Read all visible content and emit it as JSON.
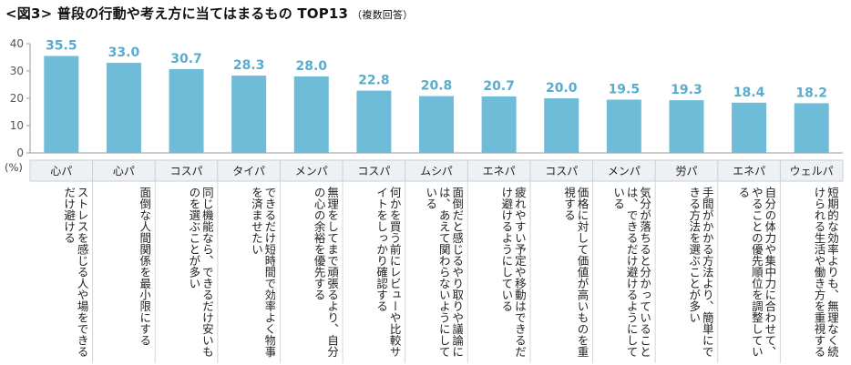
{
  "title": "<図3> 普段の行動や考え方に当てはまるもの TOP13",
  "subtitle": "（複数回答）",
  "chart_data": {
    "type": "bar",
    "ylabel": "(%)",
    "ylim": [
      0,
      40
    ],
    "yticks": [
      0,
      10,
      20,
      30,
      40
    ],
    "grid": false,
    "bar_color": "#6fbcd8",
    "label_color": "#5aaccd",
    "categories": [
      "心パ",
      "心パ",
      "コスパ",
      "タイパ",
      "メンパ",
      "コスパ",
      "ムシパ",
      "エネパ",
      "コスパ",
      "メンパ",
      "労パ",
      "エネパ",
      "ウェルパ"
    ],
    "descriptions": [
      "ストレスを感じる人や場をできるだけ避ける",
      "面倒な人間関係を最小限にする",
      "同じ機能なら、できるだけ安いものを選ぶことが多い",
      "できるだけ短時間で効率よく物事を済ませたい",
      "無理をしてまで頑張るより、自分の心の余裕を優先する",
      "何かを買う前にレビューや比較サイトをしっかり確認する",
      "面倒だと感じるやり取りや議論には、あえて関わらないようにしている",
      "疲れやすい予定や移動はできるだけ避けるようにしている",
      "価格に対して価値が高いものを重視する",
      "気分が落ちると分かっていることは、できるだけ避けるようにしている",
      "手間がかかる方法より、簡単にできる方法を選ぶことが多い",
      "自分の体力や集中力に合わせて、やることの優先順位を調整している",
      "短期的な効率よりも、無理なく続けられる生活や働き方を重視する"
    ],
    "values": [
      35.5,
      33.0,
      30.7,
      28.3,
      28.0,
      22.8,
      20.8,
      20.7,
      20.0,
      19.5,
      19.3,
      18.4,
      18.2
    ],
    "value_labels": [
      "35.5",
      "33.0",
      "30.7",
      "28.3",
      "28.0",
      "22.8",
      "20.8",
      "20.7",
      "20.0",
      "19.5",
      "19.3",
      "18.4",
      "18.2"
    ]
  }
}
